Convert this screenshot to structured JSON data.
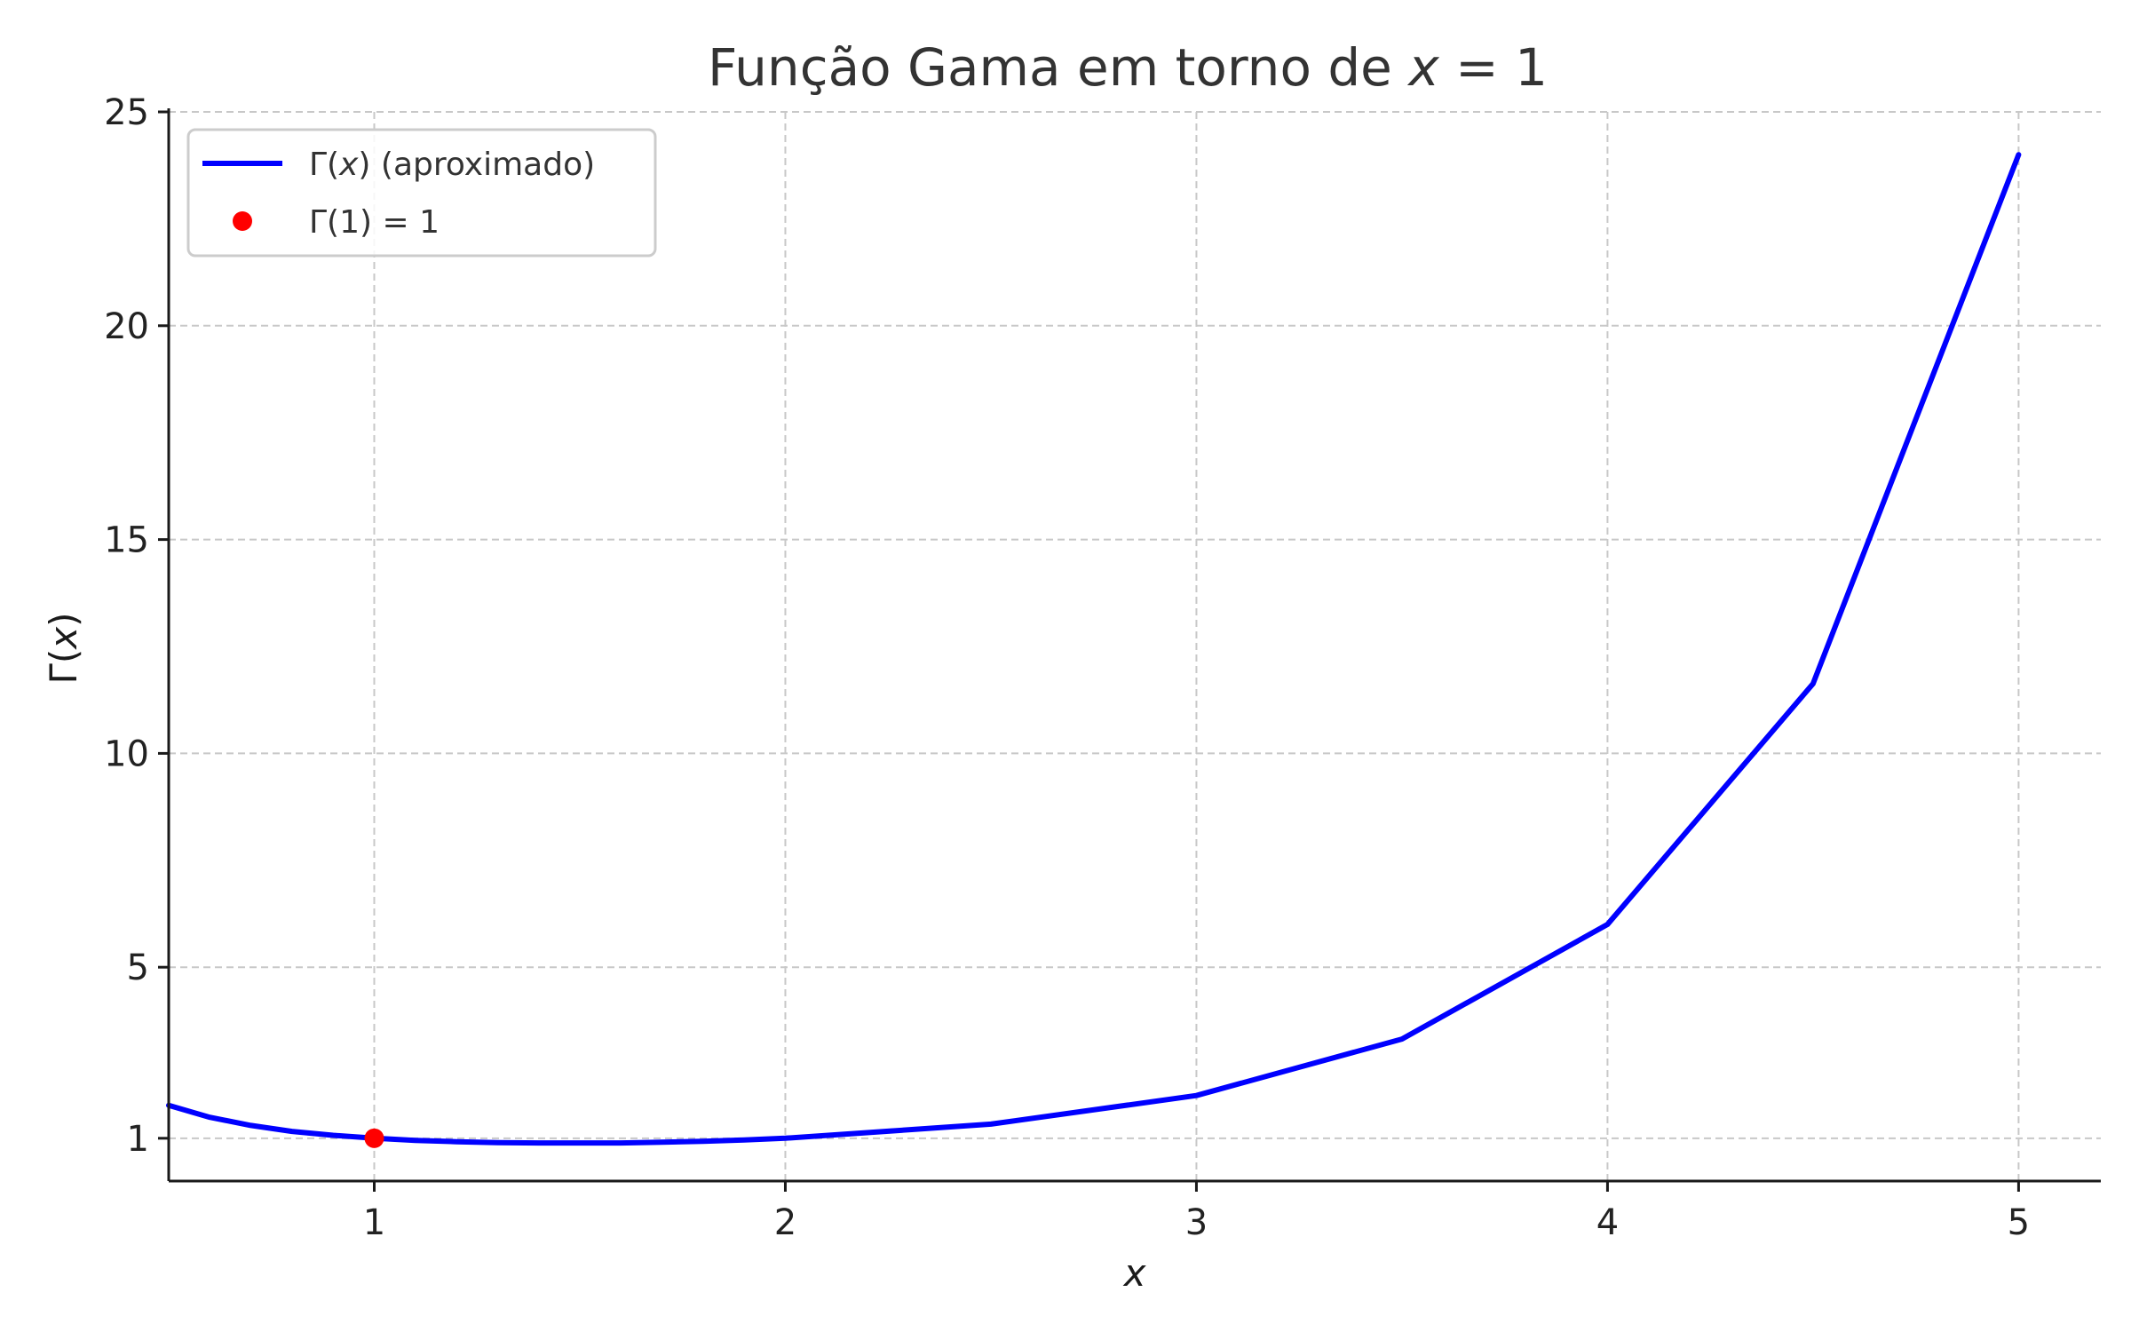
{
  "chart_data": {
    "type": "line",
    "title": "Função Gama em torno de x = 1",
    "xlabel": "x",
    "ylabel": "Γ(x)",
    "xlim": [
      0.5,
      5.2
    ],
    "ylim": [
      0,
      25
    ],
    "x_ticks": [
      1,
      2,
      3,
      4,
      5
    ],
    "y_ticks": [
      1,
      5,
      10,
      15,
      20,
      25
    ],
    "grid": true,
    "legend_position": "top-left",
    "series": [
      {
        "name": "Γ(x) (aproximado)",
        "kind": "line",
        "color": "#0000ff",
        "x": [
          0.5,
          0.6,
          0.7,
          0.8,
          0.9,
          1.0,
          1.1,
          1.2,
          1.3,
          1.4,
          1.5,
          1.6,
          1.7,
          1.8,
          1.9,
          2.0,
          2.5,
          3.0,
          3.5,
          4.0,
          4.5,
          5.0
        ],
        "y": [
          1.77,
          1.49,
          1.3,
          1.16,
          1.07,
          1.0,
          0.95,
          0.92,
          0.9,
          0.89,
          0.89,
          0.89,
          0.91,
          0.93,
          0.96,
          1.0,
          1.33,
          2.0,
          3.32,
          6.0,
          11.63,
          24.0
        ]
      },
      {
        "name": "Γ(1) = 1",
        "kind": "point",
        "color": "#ff0000",
        "x": [
          1
        ],
        "y": [
          1
        ]
      }
    ]
  }
}
